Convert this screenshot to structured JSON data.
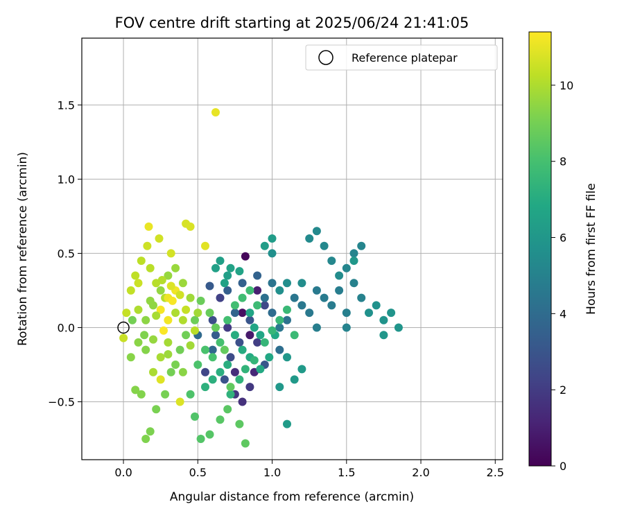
{
  "chart_data": {
    "type": "scatter",
    "title": "FOV centre drift starting at 2025/06/24 21:41:05",
    "xlabel": "Angular distance from reference (arcmin)",
    "ylabel": "Rotation from reference (arcmin)",
    "xlim": [
      -0.28,
      2.55
    ],
    "ylim": [
      -0.89,
      1.95
    ],
    "xticks": [
      0.0,
      0.5,
      1.0,
      1.5,
      2.0,
      2.5
    ],
    "xtick_labels": [
      "0.0",
      "0.5",
      "1.0",
      "1.5",
      "2.0",
      "2.5"
    ],
    "yticks": [
      -0.5,
      0.0,
      0.5,
      1.0,
      1.5
    ],
    "ytick_labels": [
      "−0.5",
      "0.0",
      "0.5",
      "1.0",
      "1.5"
    ],
    "grid": true,
    "legend": {
      "placement": "top-right",
      "entries": [
        {
          "label": "Reference platepar",
          "marker": "open-circle",
          "x": 0.0,
          "y": 0.0
        }
      ]
    },
    "colorbar": {
      "label": "Hours from first FF file",
      "colormap": "viridis",
      "range": [
        0,
        11.4
      ],
      "ticks": [
        0,
        2,
        4,
        6,
        8,
        10
      ],
      "tick_labels": [
        "0",
        "2",
        "4",
        "6",
        "8",
        "10"
      ]
    },
    "points": [
      [
        0.82,
        0.48,
        0.2
      ],
      [
        0.8,
        0.1,
        0.5
      ],
      [
        0.85,
        -0.05,
        0.8
      ],
      [
        0.9,
        0.25,
        1.0
      ],
      [
        0.88,
        -0.3,
        1.3
      ],
      [
        0.75,
        -0.3,
        1.5
      ],
      [
        0.8,
        -0.5,
        1.6
      ],
      [
        0.75,
        -0.45,
        1.8
      ],
      [
        0.85,
        -0.4,
        1.9
      ],
      [
        0.7,
        0.0,
        2.0
      ],
      [
        0.9,
        -0.1,
        2.1
      ],
      [
        0.65,
        0.2,
        2.2
      ],
      [
        0.55,
        -0.3,
        2.4
      ],
      [
        0.95,
        0.15,
        2.5
      ],
      [
        0.72,
        -0.2,
        2.6
      ],
      [
        0.6,
        0.05,
        2.7
      ],
      [
        0.78,
        -0.1,
        2.8
      ],
      [
        0.68,
        -0.35,
        2.9
      ],
      [
        0.85,
        0.05,
        3.0
      ],
      [
        0.95,
        -0.25,
        3.1
      ],
      [
        0.58,
        0.28,
        3.2
      ],
      [
        0.62,
        -0.05,
        3.3
      ],
      [
        0.7,
        0.25,
        3.4
      ],
      [
        0.8,
        0.3,
        3.5
      ],
      [
        0.9,
        0.35,
        3.6
      ],
      [
        0.75,
        0.1,
        3.7
      ],
      [
        0.6,
        -0.15,
        3.8
      ],
      [
        0.5,
        -0.05,
        3.9
      ],
      [
        1.0,
        0.1,
        4.0
      ],
      [
        1.05,
        -0.15,
        4.1
      ],
      [
        0.95,
        0.2,
        4.2
      ],
      [
        1.1,
        0.05,
        4.3
      ],
      [
        1.0,
        0.3,
        4.4
      ],
      [
        1.15,
        0.2,
        4.45
      ],
      [
        1.05,
        0.0,
        4.5
      ],
      [
        1.2,
        0.15,
        4.55
      ],
      [
        1.25,
        0.1,
        4.6
      ],
      [
        1.3,
        0.25,
        4.65
      ],
      [
        1.35,
        0.2,
        4.7
      ],
      [
        1.4,
        0.15,
        4.75
      ],
      [
        1.45,
        0.25,
        4.8
      ],
      [
        1.3,
        0.0,
        4.85
      ],
      [
        1.5,
        0.1,
        4.9
      ],
      [
        1.55,
        0.3,
        4.95
      ],
      [
        1.6,
        0.2,
        5.0
      ],
      [
        1.5,
        0.0,
        5.05
      ],
      [
        1.55,
        0.5,
        5.1
      ],
      [
        1.6,
        0.55,
        5.15
      ],
      [
        1.5,
        0.4,
        5.2
      ],
      [
        1.4,
        0.45,
        5.25
      ],
      [
        1.35,
        0.55,
        5.3
      ],
      [
        1.3,
        0.65,
        5.35
      ],
      [
        1.25,
        0.6,
        5.4
      ],
      [
        1.45,
        0.35,
        5.45
      ],
      [
        1.2,
        0.3,
        5.5
      ],
      [
        1.1,
        0.3,
        5.55
      ],
      [
        1.05,
        0.25,
        5.6
      ],
      [
        1.0,
        0.5,
        5.65
      ],
      [
        1.65,
        0.1,
        5.7
      ],
      [
        1.7,
        0.15,
        5.75
      ],
      [
        1.75,
        0.05,
        5.8
      ],
      [
        1.8,
        0.1,
        5.85
      ],
      [
        1.85,
        0.0,
        5.9
      ],
      [
        1.75,
        -0.05,
        5.95
      ],
      [
        1.55,
        0.45,
        6.0
      ],
      [
        1.1,
        -0.2,
        6.0
      ],
      [
        1.05,
        -0.4,
        6.05
      ],
      [
        1.15,
        -0.35,
        6.1
      ],
      [
        1.2,
        -0.28,
        6.15
      ],
      [
        1.1,
        -0.65,
        6.2
      ],
      [
        1.0,
        0.6,
        6.25
      ],
      [
        0.95,
        0.55,
        6.3
      ],
      [
        0.7,
        0.35,
        6.35
      ],
      [
        0.65,
        0.45,
        6.4
      ],
      [
        0.62,
        0.4,
        6.45
      ],
      [
        0.68,
        0.3,
        6.5
      ],
      [
        0.72,
        0.4,
        6.55
      ],
      [
        0.78,
        0.38,
        6.6
      ],
      [
        0.85,
        0.1,
        6.65
      ],
      [
        0.88,
        0.0,
        6.7
      ],
      [
        0.92,
        -0.05,
        6.75
      ],
      [
        0.98,
        -0.2,
        6.8
      ],
      [
        1.02,
        -0.05,
        6.85
      ],
      [
        0.92,
        -0.28,
        6.9
      ],
      [
        0.85,
        -0.2,
        6.95
      ],
      [
        0.8,
        -0.15,
        7.0
      ],
      [
        0.75,
        -0.05,
        7.05
      ],
      [
        0.7,
        -0.25,
        7.1
      ],
      [
        0.65,
        -0.3,
        7.15
      ],
      [
        0.6,
        -0.35,
        7.2
      ],
      [
        0.55,
        -0.4,
        7.25
      ],
      [
        0.72,
        -0.45,
        7.3
      ],
      [
        0.78,
        -0.35,
        7.35
      ],
      [
        0.82,
        -0.28,
        7.4
      ],
      [
        0.88,
        -0.22,
        7.45
      ],
      [
        0.95,
        -0.1,
        7.5
      ],
      [
        1.0,
        -0.02,
        7.55
      ],
      [
        1.05,
        0.05,
        7.6
      ],
      [
        1.1,
        0.12,
        7.65
      ],
      [
        1.15,
        -0.05,
        7.7
      ],
      [
        0.9,
        0.15,
        7.75
      ],
      [
        0.85,
        0.25,
        7.8
      ],
      [
        0.8,
        0.2,
        7.85
      ],
      [
        0.75,
        0.15,
        7.9
      ],
      [
        0.7,
        0.05,
        7.95
      ],
      [
        0.65,
        -0.1,
        8.0
      ],
      [
        0.6,
        -0.2,
        8.05
      ],
      [
        0.55,
        -0.15,
        8.1
      ],
      [
        0.5,
        -0.25,
        8.15
      ],
      [
        0.45,
        -0.45,
        8.2
      ],
      [
        0.48,
        -0.6,
        8.25
      ],
      [
        0.52,
        -0.75,
        8.3
      ],
      [
        0.58,
        -0.72,
        8.35
      ],
      [
        0.65,
        -0.62,
        8.4
      ],
      [
        0.7,
        -0.55,
        8.45
      ],
      [
        0.78,
        -0.65,
        8.5
      ],
      [
        0.82,
        -0.78,
        8.55
      ],
      [
        0.72,
        -0.4,
        8.6
      ],
      [
        0.68,
        -0.15,
        8.65
      ],
      [
        0.62,
        0.0,
        8.7
      ],
      [
        0.58,
        0.1,
        8.75
      ],
      [
        0.52,
        0.18,
        8.8
      ],
      [
        0.48,
        0.05,
        8.85
      ],
      [
        0.42,
        -0.05,
        8.9
      ],
      [
        0.38,
        -0.15,
        8.95
      ],
      [
        0.32,
        -0.3,
        9.0
      ],
      [
        0.28,
        -0.45,
        9.05
      ],
      [
        0.22,
        -0.55,
        9.1
      ],
      [
        0.18,
        -0.7,
        9.15
      ],
      [
        0.15,
        -0.75,
        9.2
      ],
      [
        0.12,
        -0.45,
        9.25
      ],
      [
        0.08,
        -0.42,
        9.3
      ],
      [
        0.05,
        -0.2,
        9.35
      ],
      [
        0.1,
        -0.1,
        9.4
      ],
      [
        0.15,
        0.05,
        9.45
      ],
      [
        0.2,
        0.15,
        9.5
      ],
      [
        0.25,
        0.25,
        9.55
      ],
      [
        0.3,
        0.35,
        9.6
      ],
      [
        0.35,
        0.4,
        9.65
      ],
      [
        0.4,
        0.3,
        9.7
      ],
      [
        0.45,
        0.2,
        9.75
      ],
      [
        0.5,
        0.1,
        9.8
      ],
      [
        0.3,
        -0.1,
        9.85
      ],
      [
        0.25,
        -0.2,
        9.9
      ],
      [
        0.2,
        -0.3,
        9.95
      ],
      [
        0.35,
        0.1,
        10.0
      ],
      [
        0.4,
        0.05,
        10.05
      ],
      [
        0.28,
        0.2,
        10.1
      ],
      [
        0.22,
        0.3,
        10.15
      ],
      [
        0.18,
        0.4,
        10.2
      ],
      [
        0.12,
        0.45,
        10.25
      ],
      [
        0.08,
        0.35,
        10.3
      ],
      [
        0.05,
        0.25,
        10.35
      ],
      [
        0.02,
        0.1,
        10.4
      ],
      [
        0.0,
        -0.07,
        10.45
      ],
      [
        0.1,
        0.3,
        10.5
      ],
      [
        0.16,
        0.55,
        10.55
      ],
      [
        0.24,
        0.6,
        10.6
      ],
      [
        0.32,
        0.5,
        10.65
      ],
      [
        0.42,
        0.7,
        10.7
      ],
      [
        0.45,
        0.68,
        10.75
      ],
      [
        0.38,
        -0.5,
        10.8
      ],
      [
        0.25,
        -0.35,
        10.85
      ],
      [
        0.55,
        0.55,
        10.9
      ],
      [
        0.62,
        1.45,
        11.0
      ],
      [
        0.17,
        0.68,
        11.05
      ],
      [
        0.3,
        0.2,
        11.1
      ],
      [
        0.35,
        0.25,
        11.15
      ],
      [
        0.3,
        0.05,
        11.2
      ],
      [
        0.25,
        0.12,
        11.25
      ],
      [
        0.33,
        0.18,
        11.3
      ],
      [
        0.27,
        -0.02,
        11.35
      ],
      [
        0.2,
        -0.08,
        9.6
      ],
      [
        0.15,
        -0.15,
        9.3
      ],
      [
        0.3,
        -0.18,
        9.7
      ],
      [
        0.35,
        -0.25,
        9.1
      ],
      [
        0.4,
        -0.3,
        9.4
      ],
      [
        0.45,
        -0.12,
        9.8
      ],
      [
        0.48,
        -0.02,
        10.2
      ],
      [
        0.42,
        0.12,
        10.4
      ],
      [
        0.38,
        0.22,
        10.6
      ],
      [
        0.32,
        0.28,
        10.8
      ],
      [
        0.26,
        0.32,
        10.1
      ],
      [
        0.22,
        0.08,
        9.9
      ],
      [
        0.18,
        0.18,
        9.5
      ],
      [
        0.14,
        -0.05,
        9.2
      ],
      [
        0.1,
        0.12,
        10.0
      ],
      [
        0.06,
        0.05,
        9.0
      ]
    ]
  }
}
